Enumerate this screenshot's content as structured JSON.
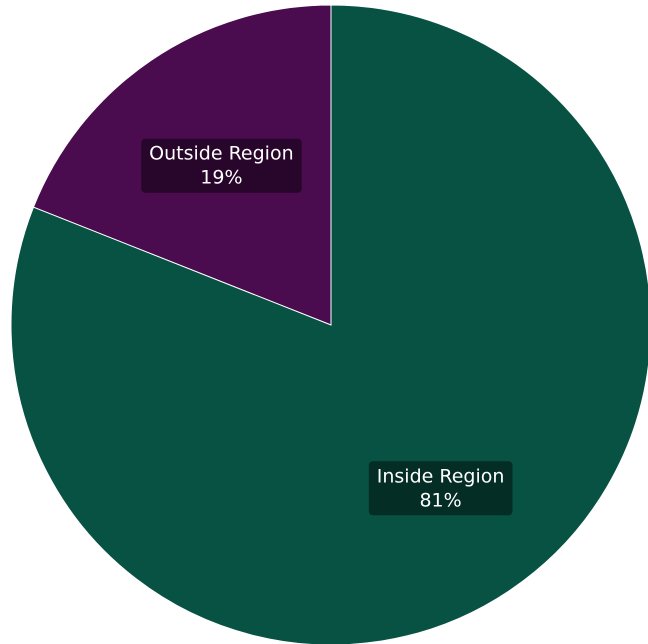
{
  "chart_data": {
    "type": "pie",
    "slices": [
      {
        "label": "Outside Region",
        "value": 19,
        "value_label": "19%",
        "color": "#4a0b4f"
      },
      {
        "label": "Inside Region",
        "value": 81,
        "value_label": "81%",
        "color": "#085244"
      }
    ],
    "start_angle": "12 o'clock",
    "direction": "counter-clockwise",
    "slice_border_color": "#ffffff",
    "label_box_color": "#000000"
  }
}
